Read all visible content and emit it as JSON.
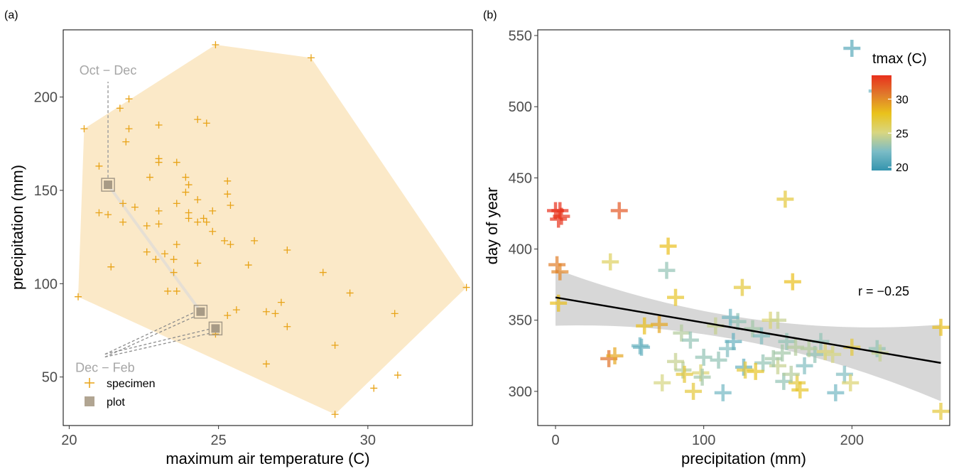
{
  "chart_data": [
    {
      "type": "scatter",
      "panel_label": "(a)",
      "xlabel": "maximum air temperature (C)",
      "ylabel": "precipitation (mm)",
      "xlim": [
        19.8,
        33.5
      ],
      "ylim": [
        24,
        236
      ],
      "xticks": [
        20,
        25,
        30
      ],
      "yticks": [
        50,
        100,
        150,
        200
      ],
      "grid": false,
      "hull_color": "#fbe9c8",
      "hull": [
        [
          20.5,
          183
        ],
        [
          24.9,
          228
        ],
        [
          28.1,
          221
        ],
        [
          33.3,
          98
        ],
        [
          28.9,
          30
        ],
        [
          20.3,
          93
        ]
      ],
      "series": [
        {
          "name": "specimen",
          "marker": "plus",
          "color": "#e8a317",
          "points": [
            [
              24.9,
              228
            ],
            [
              28.1,
              221
            ],
            [
              33.3,
              98
            ],
            [
              28.9,
              30
            ],
            [
              20.3,
              93
            ],
            [
              20.5,
              183
            ],
            [
              21.7,
              194
            ],
            [
              22.0,
              199
            ],
            [
              22.0,
              183
            ],
            [
              21.9,
              176
            ],
            [
              21.0,
              163
            ],
            [
              23.0,
              185
            ],
            [
              23.0,
              167
            ],
            [
              23.0,
              165
            ],
            [
              23.6,
              165
            ],
            [
              22.7,
              157
            ],
            [
              23.9,
              157
            ],
            [
              24.3,
              188
            ],
            [
              24.6,
              186
            ],
            [
              24.0,
              153
            ],
            [
              23.9,
              149
            ],
            [
              25.3,
              155
            ],
            [
              25.3,
              148
            ],
            [
              25.4,
              142
            ],
            [
              21.0,
              138
            ],
            [
              21.3,
              137
            ],
            [
              21.8,
              143
            ],
            [
              22.2,
              141
            ],
            [
              21.8,
              133
            ],
            [
              22.6,
              131
            ],
            [
              23.0,
              139
            ],
            [
              23.0,
              132
            ],
            [
              23.6,
              143
            ],
            [
              24.3,
              145
            ],
            [
              24.0,
              138
            ],
            [
              24.0,
              135
            ],
            [
              24.3,
              133
            ],
            [
              24.5,
              135
            ],
            [
              24.8,
              139
            ],
            [
              24.6,
              133
            ],
            [
              24.8,
              128
            ],
            [
              25.2,
              123
            ],
            [
              25.4,
              121
            ],
            [
              26.2,
              123
            ],
            [
              22.6,
              117
            ],
            [
              22.9,
              113
            ],
            [
              23.2,
              116
            ],
            [
              23.6,
              121
            ],
            [
              23.5,
              113
            ],
            [
              24.3,
              111
            ],
            [
              21.4,
              109
            ],
            [
              23.5,
              106
            ],
            [
              23.3,
              96
            ],
            [
              23.6,
              96
            ],
            [
              26.0,
              110
            ],
            [
              27.3,
              118
            ],
            [
              28.5,
              106
            ],
            [
              29.4,
              95
            ],
            [
              27.1,
              90
            ],
            [
              26.6,
              85
            ],
            [
              26.9,
              84
            ],
            [
              25.6,
              86
            ],
            [
              25.3,
              83
            ],
            [
              24.9,
              73
            ],
            [
              27.3,
              77
            ],
            [
              28.9,
              67
            ],
            [
              30.9,
              84
            ],
            [
              26.6,
              57
            ],
            [
              31.0,
              51
            ],
            [
              30.2,
              44
            ]
          ]
        },
        {
          "name": "plot",
          "marker": "square",
          "color": "#a89b86",
          "points": [
            [
              21.3,
              153
            ],
            [
              24.4,
              85
            ],
            [
              24.9,
              76
            ]
          ]
        }
      ],
      "annotations": [
        {
          "text": "Oct − Dec",
          "at": [
            21.3,
            212
          ]
        },
        {
          "text": "Dec − Feb",
          "at": [
            21.2,
            55
          ]
        }
      ],
      "legend": {
        "position": "bottom-left",
        "labels": [
          "specimen",
          "plot"
        ]
      }
    },
    {
      "type": "scatter",
      "panel_label": "(b)",
      "xlabel": "precipitation (mm)",
      "ylabel": "day of year",
      "xlim": [
        -12,
        266
      ],
      "ylim": [
        276,
        554
      ],
      "xticks": [
        0,
        100,
        200
      ],
      "yticks": [
        300,
        350,
        400,
        450,
        500,
        550
      ],
      "grid": false,
      "colorbar": {
        "title": "tmax (C)",
        "min": 19.5,
        "max": 33.5,
        "ticks": [
          20,
          25,
          30
        ],
        "colors": [
          "#3494ae",
          "#7bbcc6",
          "#d9d680",
          "#e9c21b",
          "#e07a2c",
          "#e8301c"
        ]
      },
      "regression": {
        "x": [
          0,
          260
        ],
        "y": [
          366,
          320
        ],
        "ci_color": "#d3d3d3"
      },
      "correlation_label": "r = −0.25",
      "points": [
        [
          200,
          541,
          21.0
        ],
        [
          217,
          511,
          22.0
        ],
        [
          0,
          427,
          33.5
        ],
        [
          3,
          427,
          33.5
        ],
        [
          4,
          423,
          33.3
        ],
        [
          2,
          421,
          33.4
        ],
        [
          43,
          427,
          32.0
        ],
        [
          1,
          389,
          30.5
        ],
        [
          3,
          384,
          30.2
        ],
        [
          37,
          391,
          26.0
        ],
        [
          75,
          385,
          23.0
        ],
        [
          76,
          402,
          28.0
        ],
        [
          155,
          435,
          27.0
        ],
        [
          2,
          362,
          28.0
        ],
        [
          160,
          377,
          28.0
        ],
        [
          126,
          373,
          27.0
        ],
        [
          81,
          366,
          27.5
        ],
        [
          70,
          347,
          29.0
        ],
        [
          60,
          346,
          28.0
        ],
        [
          36,
          323,
          31.0
        ],
        [
          40,
          325,
          29.0
        ],
        [
          57,
          332,
          22.0
        ],
        [
          85,
          341,
          24.0
        ],
        [
          91,
          336,
          23.0
        ],
        [
          100,
          324,
          23.0
        ],
        [
          86,
          315,
          24.0
        ],
        [
          98,
          313,
          25.5
        ],
        [
          99,
          310,
          23.5
        ],
        [
          93,
          300,
          27.0
        ],
        [
          72,
          306,
          25.0
        ],
        [
          87,
          312,
          27.0
        ],
        [
          110,
          322,
          23.0
        ],
        [
          116,
          330,
          22.5
        ],
        [
          120,
          335,
          21.5
        ],
        [
          123,
          349,
          23.0
        ],
        [
          108,
          346,
          24.5
        ],
        [
          118,
          352,
          22.0
        ],
        [
          133,
          344,
          23.5
        ],
        [
          139,
          339,
          22.5
        ],
        [
          145,
          350,
          25.5
        ],
        [
          150,
          350,
          24.5
        ],
        [
          156,
          335,
          23.0
        ],
        [
          127,
          317,
          21.5
        ],
        [
          140,
          320,
          23.0
        ],
        [
          135,
          314,
          27.5
        ],
        [
          128,
          315,
          27.0
        ],
        [
          150,
          318,
          24.5
        ],
        [
          154,
          307,
          23.0
        ],
        [
          163,
          306,
          27.0
        ],
        [
          165,
          301,
          27.5
        ],
        [
          159,
          312,
          24.0
        ],
        [
          147,
          323,
          23.5
        ],
        [
          153,
          327,
          23.5
        ],
        [
          168,
          318,
          22.5
        ],
        [
          175,
          326,
          23.0
        ],
        [
          162,
          331,
          24.0
        ],
        [
          179,
          335,
          23.0
        ],
        [
          182,
          328,
          25.5
        ],
        [
          187,
          326,
          25.0
        ],
        [
          200,
          331,
          27.0
        ],
        [
          195,
          312,
          22.5
        ],
        [
          199,
          306,
          25.5
        ],
        [
          189,
          299,
          22.0
        ],
        [
          217,
          330,
          23.0
        ],
        [
          219,
          327,
          24.5
        ],
        [
          260,
          345,
          28.0
        ],
        [
          260,
          286,
          27.0
        ],
        [
          113,
          299,
          22.0
        ],
        [
          58,
          331,
          21.5
        ],
        [
          81,
          321,
          24.5
        ],
        [
          171,
          330,
          24.0
        ]
      ]
    }
  ]
}
